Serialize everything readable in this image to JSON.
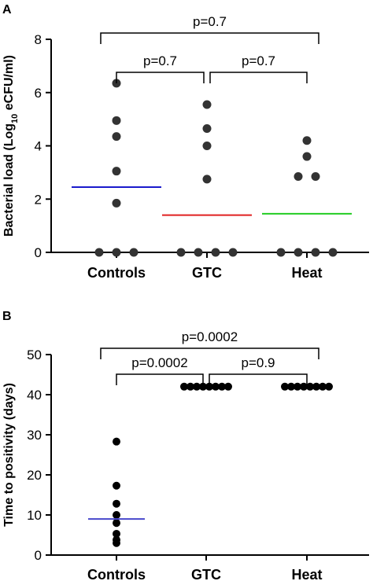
{
  "chart_data": [
    {
      "panel": "A",
      "type": "scatter",
      "ylabel_pre": "Bacterial load (Log",
      "ylabel_sub": "10",
      "ylabel_post": " eCFU/ml)",
      "ylim": [
        0,
        8
      ],
      "yticks": [
        "0",
        "2",
        "4",
        "6",
        "8"
      ],
      "categories": [
        "Controls",
        "GTC",
        "Heat"
      ],
      "points": [
        [
          6.35,
          4.95,
          4.35,
          3.05,
          1.85,
          0,
          0,
          0
        ],
        [
          5.55,
          4.65,
          4.0,
          2.75,
          0,
          0,
          0,
          0
        ],
        [
          4.2,
          3.6,
          2.85,
          2.85,
          0,
          0,
          0,
          0
        ]
      ],
      "medians": [
        2.45,
        1.4,
        1.45
      ],
      "median_colors": [
        "#1a1acc",
        "#e02020",
        "#22cc22"
      ],
      "comparisons": [
        {
          "from": 0,
          "to": 1,
          "label": "p=0.7",
          "level": 0
        },
        {
          "from": 1,
          "to": 2,
          "label": "p=0.7",
          "level": 0
        },
        {
          "from": 0,
          "to": 2,
          "label": "p=0.7",
          "level": 1
        }
      ]
    },
    {
      "panel": "B",
      "type": "scatter",
      "ylabel_pre": "Time to positivity (days)",
      "ylabel_sub": "",
      "ylabel_post": "",
      "ylim": [
        0,
        50
      ],
      "yticks": [
        "0",
        "10",
        "20",
        "30",
        "40",
        "50"
      ],
      "categories": [
        "Controls",
        "GTC",
        "Heat"
      ],
      "points": [
        [
          28.3,
          17.3,
          12.8,
          10.0,
          8.0,
          5.3,
          3.8,
          3.0
        ],
        [
          42,
          42,
          42,
          42,
          42,
          42,
          42,
          42
        ],
        [
          42,
          42,
          42,
          42,
          42,
          42,
          42,
          42
        ]
      ],
      "medians": [
        9.0,
        null,
        null
      ],
      "median_colors": [
        "#4848cc",
        null,
        null
      ],
      "comparisons": [
        {
          "from": 0,
          "to": 1,
          "label": "p=0.0002",
          "level": 0
        },
        {
          "from": 1,
          "to": 2,
          "label": "p=0.9",
          "level": 0
        },
        {
          "from": 0,
          "to": 2,
          "label": "p=0.0002",
          "level": 1
        }
      ]
    }
  ]
}
